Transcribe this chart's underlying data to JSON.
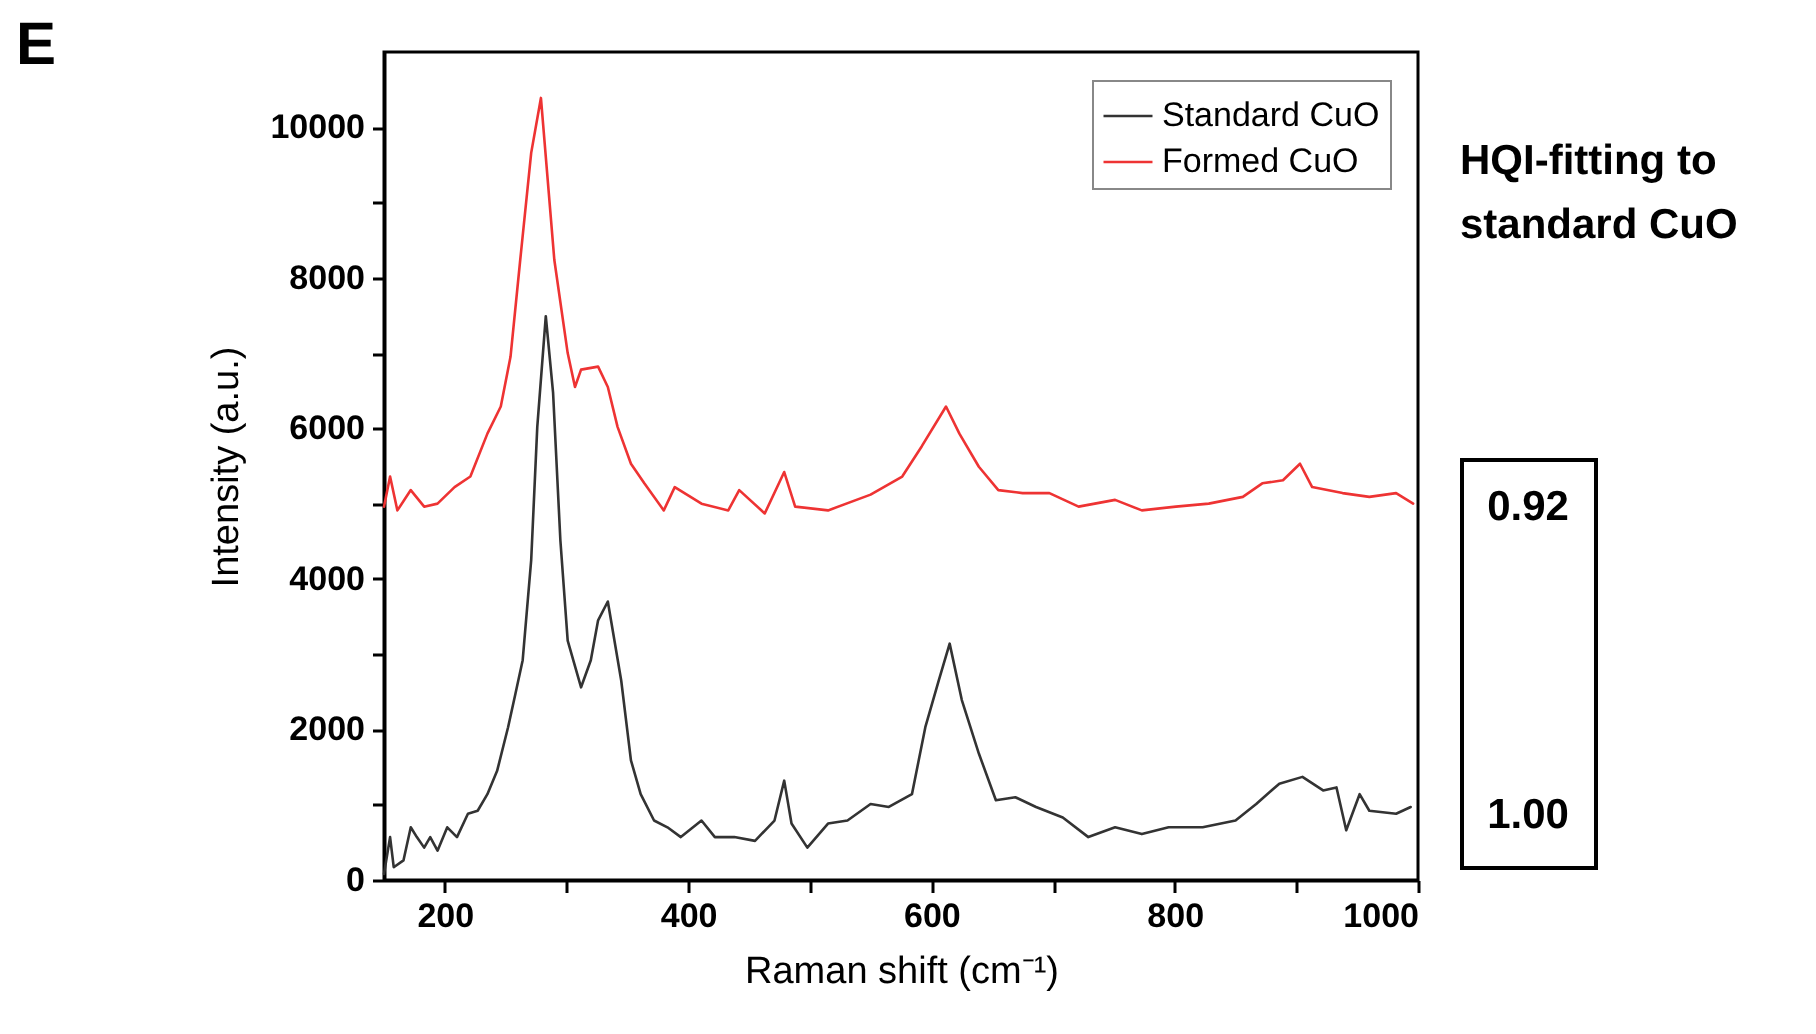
{
  "chart_data": {
    "type": "line",
    "title": "E",
    "xlabel": "Raman shift (cm⁻¹)",
    "ylabel": "Intensity (a.u.)",
    "xlim": [
      150,
      1000
    ],
    "xticks": [
      200,
      {
        "value": 300,
        "label": null
      },
      400,
      {
        "value": 500,
        "label": null
      },
      600,
      {
        "value": 700,
        "label": null
      },
      800,
      {
        "value": 900,
        "label": null
      },
      1000
    ],
    "ylim": [
      0,
      11000
    ],
    "yticks": [
      0,
      {
        "value": 1000,
        "label": null
      },
      2000,
      {
        "value": 3000,
        "label": null
      },
      4000,
      {
        "value": 5000,
        "label": null
      },
      6000,
      {
        "value": 7000,
        "label": null
      },
      8000,
      {
        "value": 9000,
        "label": null
      },
      10000
    ],
    "grid": false,
    "legend": "top right",
    "line_style": "solid",
    "marker": "none",
    "annotations": [
      "HQI-fitting to standard CuO",
      "0.92",
      "1.00"
    ],
    "series": [
      {
        "name": "Standard CuO",
        "color": "#333333",
        "x": [
          150,
          155,
          158,
          166,
          172,
          177,
          183,
          188,
          194,
          202,
          210,
          219,
          227,
          235,
          243,
          252,
          258,
          264,
          271,
          276,
          283,
          289,
          295,
          301,
          312,
          320,
          326,
          334,
          345,
          353,
          361,
          372,
          383,
          394,
          411,
          422,
          438,
          455,
          471,
          479,
          485,
          498,
          515,
          531,
          550,
          565,
          584,
          595,
          606,
          615,
          625,
          639,
          653,
          669,
          686,
          708,
          729,
          751,
          773,
          795,
          823,
          850,
          867,
          886,
          905,
          922,
          933,
          941,
          952,
          960,
          982,
          994
        ],
        "values": [
          80,
          570,
          170,
          260,
          700,
          570,
          430,
          570,
          390,
          700,
          570,
          880,
          920,
          1140,
          1450,
          2030,
          2470,
          2920,
          4250,
          6020,
          7490,
          6470,
          4510,
          3180,
          2560,
          2920,
          3450,
          3700,
          2650,
          1590,
          1140,
          790,
          700,
          570,
          790,
          570,
          570,
          520,
          790,
          1320,
          750,
          430,
          750,
          790,
          1010,
          970,
          1140,
          2030,
          2650,
          3140,
          2390,
          1680,
          1060,
          1100,
          970,
          830,
          570,
          700,
          610,
          700,
          700,
          790,
          1010,
          1280,
          1370,
          1190,
          1230,
          660,
          1140,
          920,
          880,
          970
        ]
      },
      {
        "name": "Formed CuO",
        "color": "#ee3333",
        "x": [
          150,
          155,
          161,
          172,
          183,
          194,
          208,
          221,
          235,
          246,
          254,
          262,
          271,
          279,
          290,
          301,
          307,
          312,
          326,
          334,
          342,
          353,
          364,
          380,
          389,
          411,
          433,
          442,
          463,
          479,
          488,
          515,
          550,
          576,
          592,
          612,
          623,
          639,
          655,
          675,
          697,
          721,
          751,
          773,
          801,
          828,
          856,
          872,
          889,
          903,
          913,
          938,
          960,
          982,
          996
        ],
        "values": [
          4960,
          5360,
          4910,
          5180,
          4960,
          5000,
          5220,
          5360,
          5930,
          6290,
          6950,
          8240,
          9660,
          10390,
          8240,
          7000,
          6550,
          6780,
          6820,
          6550,
          6020,
          5530,
          5270,
          4910,
          5220,
          5000,
          4910,
          5180,
          4870,
          5420,
          4960,
          4910,
          5120,
          5360,
          5760,
          6290,
          5930,
          5490,
          5180,
          5140,
          5140,
          4960,
          5050,
          4910,
          4960,
          5000,
          5090,
          5270,
          5310,
          5530,
          5220,
          5140,
          5090,
          5140,
          5000
        ]
      }
    ]
  }
}
